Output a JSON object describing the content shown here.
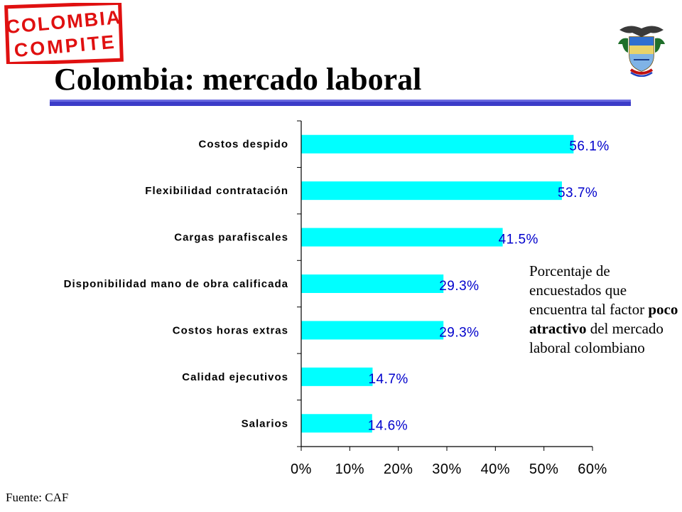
{
  "logo": {
    "line1": "COLOMBIA",
    "line2": "COMPITE"
  },
  "title": "Colombia: mercado laboral",
  "colors": {
    "bar": "#00FFFF",
    "value_label": "#0000CC",
    "title_rule": "#3C3CC8",
    "logo_red": "#E01010"
  },
  "annotation": {
    "before": "Porcentaje de encuestados que encuentra tal factor ",
    "emphasis": "poco atractivo",
    "after": " del mercado laboral colombiano"
  },
  "source": "Fuente: CAF",
  "crest_icon": "colombia-coat-of-arms-icon",
  "chart_data": {
    "type": "bar",
    "orientation": "horizontal",
    "title": "",
    "xlabel": "",
    "ylabel": "",
    "categories": [
      "Costos despido",
      "Flexibilidad contratación",
      "Cargas parafiscales",
      "Disponibilidad mano de obra calificada",
      "Costos horas extras",
      "Calidad ejecutivos",
      "Salarios"
    ],
    "values": [
      56.1,
      53.7,
      41.5,
      29.3,
      29.3,
      14.7,
      14.6
    ],
    "value_labels": [
      "56.1%",
      "53.7%",
      "41.5%",
      "29.3%",
      "29.3%",
      "14.7%",
      "14.6%"
    ],
    "xlim": [
      0,
      60
    ],
    "xticks": [
      "0%",
      "10%",
      "20%",
      "30%",
      "40%",
      "50%",
      "60%"
    ],
    "grid": false,
    "legend": "none"
  }
}
